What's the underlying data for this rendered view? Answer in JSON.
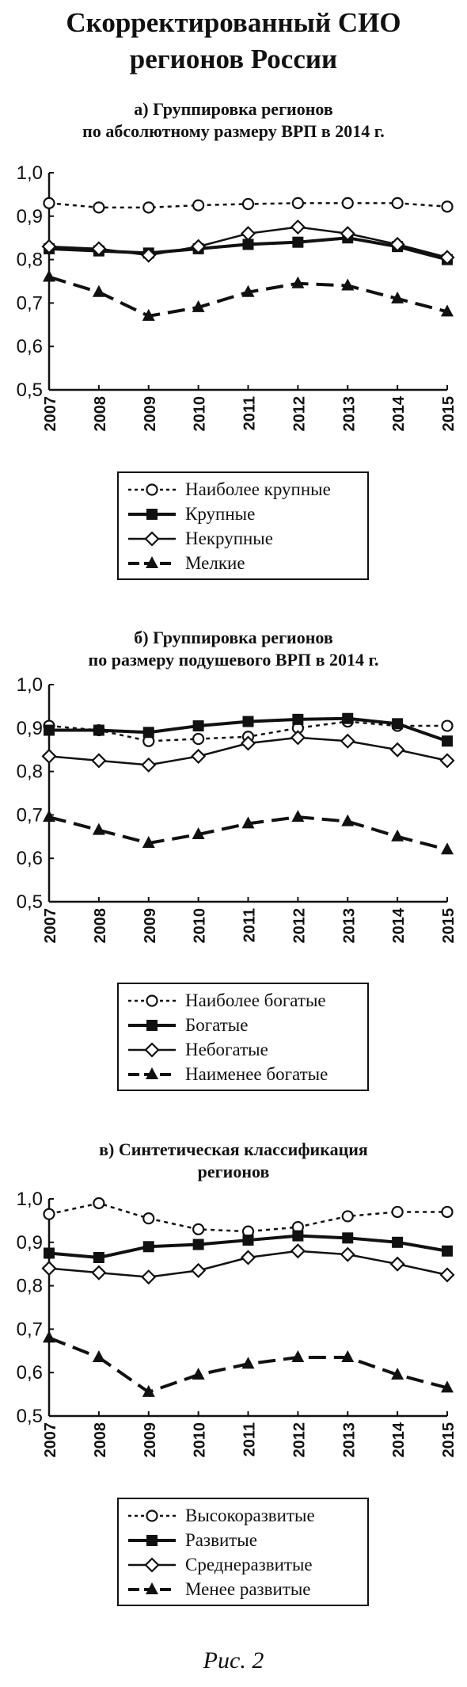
{
  "page": {
    "title_line1": "Скорректированный СИО",
    "title_line2": "регионов России",
    "caption": "Рис. 2"
  },
  "chart_data": [
    {
      "type": "line",
      "title_line1": "а) Группировка регионов",
      "title_line2": "по абсолютному размеру ВРП в 2014 г.",
      "x": [
        "2007",
        "2008",
        "2009",
        "2010",
        "2011",
        "2012",
        "2013",
        "2014",
        "2015"
      ],
      "ylim": [
        0.5,
        1.0
      ],
      "yticks": [
        "1,0",
        "0,9",
        "0,8",
        "0,7",
        "0,6",
        "0,5"
      ],
      "grid": false,
      "legend_position": "below",
      "series": [
        {
          "name": "Наиболее крупные",
          "style": "dotted-open-circle",
          "values": [
            0.93,
            0.92,
            0.92,
            0.925,
            0.928,
            0.93,
            0.93,
            0.93,
            0.922
          ]
        },
        {
          "name": "Крупные",
          "style": "solid-filled-square",
          "values": [
            0.825,
            0.82,
            0.815,
            0.825,
            0.835,
            0.84,
            0.85,
            0.83,
            0.8
          ]
        },
        {
          "name": "Некрупные",
          "style": "solid-open-diamond",
          "values": [
            0.83,
            0.825,
            0.81,
            0.83,
            0.86,
            0.875,
            0.86,
            0.835,
            0.805
          ]
        },
        {
          "name": "Мелкие",
          "style": "dashed-filled-triangle",
          "values": [
            0.76,
            0.725,
            0.67,
            0.69,
            0.725,
            0.745,
            0.74,
            0.71,
            0.68
          ]
        }
      ]
    },
    {
      "type": "line",
      "title_line1": "б) Группировка регионов",
      "title_line2": "по размеру подушевого ВРП в 2014 г.",
      "x": [
        "2007",
        "2008",
        "2009",
        "2010",
        "2011",
        "2012",
        "2013",
        "2014",
        "2015"
      ],
      "ylim": [
        0.5,
        1.0
      ],
      "yticks": [
        "1,0",
        "0,9",
        "0,8",
        "0,7",
        "0,6",
        "0,5"
      ],
      "grid": false,
      "legend_position": "below",
      "series": [
        {
          "name": "Наиболее богатые",
          "style": "dotted-open-circle",
          "values": [
            0.905,
            0.895,
            0.87,
            0.875,
            0.88,
            0.9,
            0.915,
            0.905,
            0.905
          ]
        },
        {
          "name": "Богатые",
          "style": "solid-filled-square",
          "values": [
            0.895,
            0.895,
            0.89,
            0.905,
            0.915,
            0.92,
            0.922,
            0.91,
            0.87
          ]
        },
        {
          "name": "Небогатые",
          "style": "solid-open-diamond",
          "values": [
            0.835,
            0.825,
            0.815,
            0.835,
            0.865,
            0.878,
            0.87,
            0.85,
            0.825
          ]
        },
        {
          "name": "Наименее богатые",
          "style": "dashed-filled-triangle",
          "values": [
            0.695,
            0.665,
            0.635,
            0.655,
            0.68,
            0.695,
            0.685,
            0.65,
            0.62
          ]
        }
      ]
    },
    {
      "type": "line",
      "title_line1": "в) Синтетическая классификация",
      "title_line2": "регионов",
      "x": [
        "2007",
        "2008",
        "2009",
        "2010",
        "2011",
        "2012",
        "2013",
        "2014",
        "2015"
      ],
      "ylim": [
        0.5,
        1.0
      ],
      "yticks": [
        "1,0",
        "0,9",
        "0,8",
        "0,7",
        "0,6",
        "0,5"
      ],
      "grid": false,
      "legend_position": "below",
      "series": [
        {
          "name": "Высокоразвитые",
          "style": "dotted-open-circle",
          "values": [
            0.965,
            0.99,
            0.955,
            0.93,
            0.925,
            0.935,
            0.96,
            0.97,
            0.97
          ]
        },
        {
          "name": "Развитые",
          "style": "solid-filled-square",
          "values": [
            0.875,
            0.865,
            0.89,
            0.895,
            0.905,
            0.915,
            0.91,
            0.9,
            0.88
          ]
        },
        {
          "name": "Среднеразвитые",
          "style": "solid-open-diamond",
          "values": [
            0.84,
            0.83,
            0.82,
            0.835,
            0.865,
            0.88,
            0.872,
            0.85,
            0.825
          ]
        },
        {
          "name": "Менее развитые",
          "style": "dashed-filled-triangle",
          "values": [
            0.68,
            0.635,
            0.555,
            0.595,
            0.62,
            0.635,
            0.635,
            0.595,
            0.565
          ]
        }
      ]
    }
  ]
}
